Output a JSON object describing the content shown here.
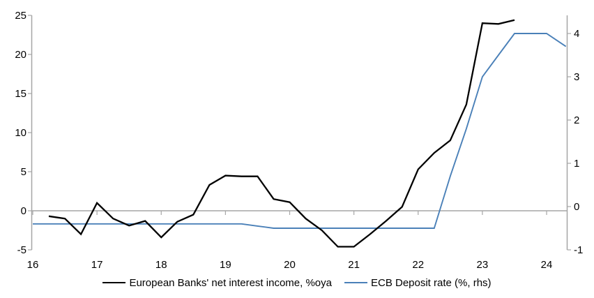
{
  "chart_data": {
    "type": "line",
    "title": "",
    "grid": "zero-line-only",
    "legend_position": "bottom-center",
    "axis_color": "#a6a6a6",
    "x_range": [
      16,
      24.32
    ],
    "x_ticks": [
      "16",
      "17",
      "18",
      "19",
      "20",
      "21",
      "22",
      "23",
      "24"
    ],
    "left_axis": {
      "range": [
        -5,
        25
      ],
      "ticks": [
        25,
        20,
        15,
        10,
        5,
        0,
        -5
      ]
    },
    "right_axis": {
      "range": [
        -1,
        4
      ],
      "ticks": [
        4,
        3,
        2,
        1,
        0,
        -1
      ]
    },
    "series": [
      {
        "name": "European Banks' net interest income, %oya",
        "color": "#000000",
        "axis": "left",
        "line_width": 2.3,
        "points": [
          [
            16.25,
            -0.7
          ],
          [
            16.5,
            -1.0
          ],
          [
            16.75,
            -3.0
          ],
          [
            17.0,
            1.0
          ],
          [
            17.25,
            -1.0
          ],
          [
            17.5,
            -1.9
          ],
          [
            17.75,
            -1.3
          ],
          [
            18.0,
            -3.4
          ],
          [
            18.25,
            -1.4
          ],
          [
            18.5,
            -0.5
          ],
          [
            18.75,
            3.3
          ],
          [
            19.0,
            4.5
          ],
          [
            19.25,
            4.4
          ],
          [
            19.5,
            4.4
          ],
          [
            19.75,
            1.5
          ],
          [
            20.0,
            1.1
          ],
          [
            20.25,
            -1.0
          ],
          [
            20.5,
            -2.5
          ],
          [
            20.75,
            -4.6
          ],
          [
            21.0,
            -4.6
          ],
          [
            21.25,
            -3.0
          ],
          [
            21.5,
            -1.3
          ],
          [
            21.75,
            0.5
          ],
          [
            22.0,
            5.3
          ],
          [
            22.25,
            7.4
          ],
          [
            22.5,
            9.0
          ],
          [
            22.75,
            13.6
          ],
          [
            23.0,
            24.0
          ],
          [
            23.25,
            23.9
          ],
          [
            23.5,
            24.4
          ]
        ]
      },
      {
        "name": "ECB Deposit rate (%, rhs)",
        "color": "#4a80b8",
        "axis": "right",
        "line_width": 1.9,
        "points": [
          [
            16.0,
            -0.4
          ],
          [
            19.25,
            -0.4
          ],
          [
            19.5,
            -0.45
          ],
          [
            19.75,
            -0.5
          ],
          [
            22.25,
            -0.5
          ],
          [
            22.5,
            0.7
          ],
          [
            22.75,
            1.8
          ],
          [
            23.0,
            3.0
          ],
          [
            23.25,
            3.5
          ],
          [
            23.5,
            4.0
          ],
          [
            23.75,
            4.0
          ],
          [
            24.0,
            4.0
          ],
          [
            24.3,
            3.7
          ]
        ]
      }
    ]
  }
}
